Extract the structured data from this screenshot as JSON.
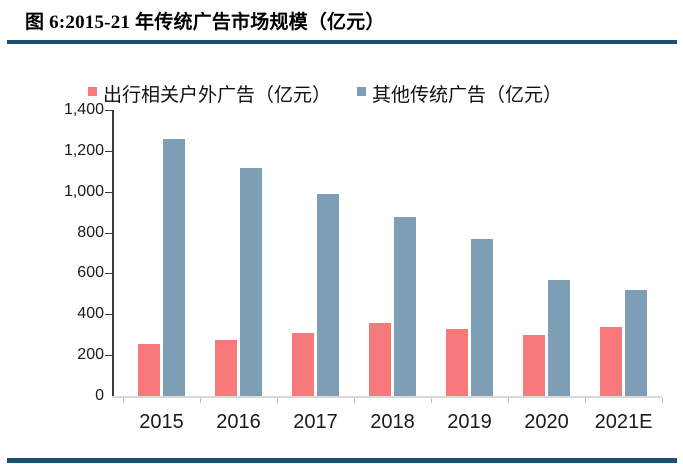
{
  "title": "图 6:2015-21 年传统广告市场规模（亿元）",
  "accent_rule_color": "#1A5173",
  "chart_data": {
    "type": "bar",
    "title": "图 6:2015-21 年传统广告市场规模（亿元）",
    "categories": [
      "2015",
      "2016",
      "2017",
      "2018",
      "2019",
      "2020",
      "2021E"
    ],
    "series": [
      {
        "name": "出行相关户外广告（亿元）",
        "color": "#F8797C",
        "values": [
          255,
          275,
          310,
          355,
          330,
          300,
          340
        ]
      },
      {
        "name": "其他传统广告（亿元）",
        "color": "#7E9EB5",
        "values": [
          1260,
          1115,
          990,
          875,
          770,
          570,
          520
        ]
      }
    ],
    "xlabel": "",
    "ylabel": "",
    "ylim": [
      0,
      1400
    ],
    "ytick_step": 200,
    "ytick_labels": [
      "0",
      "200",
      "400",
      "600",
      "800",
      "1,000",
      "1,200",
      "1,400"
    ],
    "legend_position": "top",
    "grid": false
  }
}
